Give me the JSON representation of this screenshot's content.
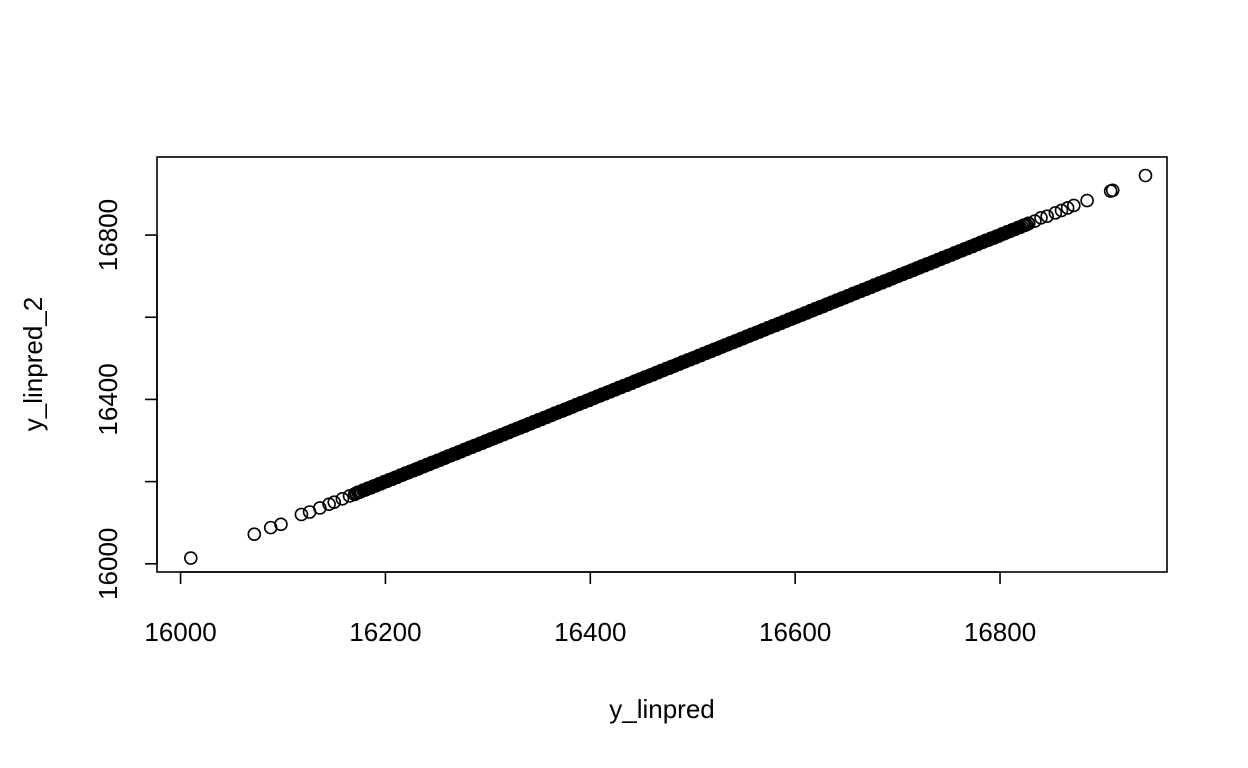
{
  "chart_data": {
    "type": "scatter",
    "title": "",
    "xlabel": "y_linpred",
    "ylabel": "y_linpred_2",
    "xlim": [
      15977,
      16963
    ],
    "ylim": [
      15980,
      16990
    ],
    "x_ticks": [
      16000,
      16200,
      16400,
      16600,
      16800
    ],
    "y_ticks": [
      16000,
      16400,
      16800
    ],
    "grid": false,
    "legend": "none",
    "marker": "open-circle",
    "marker_color": "#000000",
    "series": [
      {
        "points": [
          [
            16010,
            16014
          ],
          [
            16072,
            16072
          ],
          [
            16088,
            16088
          ],
          [
            16098,
            16096
          ],
          [
            16118,
            16120
          ],
          [
            16126,
            16126
          ],
          [
            16136,
            16136
          ],
          [
            16145,
            16145
          ],
          [
            16150,
            16150
          ],
          [
            16158,
            16158
          ],
          [
            16165,
            16165
          ],
          [
            16170,
            16170
          ],
          [
            16828,
            16828
          ],
          [
            16834,
            16834
          ],
          [
            16840,
            16842
          ],
          [
            16846,
            16846
          ],
          [
            16854,
            16854
          ],
          [
            16860,
            16860
          ],
          [
            16866,
            16866
          ],
          [
            16872,
            16872
          ],
          [
            16885,
            16884
          ],
          [
            16908,
            16907
          ],
          [
            16910,
            16909
          ],
          [
            16942,
            16945
          ]
        ],
        "dense_range": [
          16170,
          16828
        ]
      }
    ]
  }
}
